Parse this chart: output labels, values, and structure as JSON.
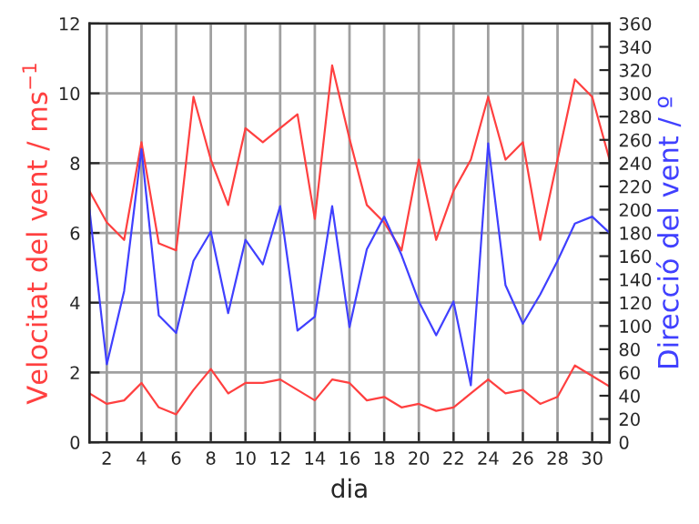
{
  "chart_data": {
    "type": "line",
    "xlabel": "dia",
    "ylabel": "Velocitat del vent / ms$^{−1}$",
    "y2label": "Direcció del vent / º",
    "x": [
      1,
      2,
      3,
      4,
      5,
      6,
      7,
      8,
      9,
      10,
      11,
      12,
      13,
      14,
      15,
      16,
      17,
      18,
      19,
      20,
      21,
      22,
      23,
      24,
      25,
      26,
      27,
      28,
      29,
      30,
      31
    ],
    "series": [
      {
        "color": "#ff4040",
        "values": [
          7.2,
          6.3,
          5.8,
          8.6,
          5.7,
          5.5,
          9.9,
          8.1,
          6.8,
          9.0,
          8.6,
          9.0,
          9.4,
          6.4,
          10.8,
          8.7,
          6.8,
          6.3,
          5.5,
          8.1,
          5.8,
          7.2,
          8.1,
          9.9,
          8.1,
          8.6,
          5.8,
          8.1,
          10.4,
          9.9,
          8.1
        ]
      },
      {
        "color": "#ff4040",
        "values": [
          1.4,
          1.1,
          1.2,
          1.7,
          1.0,
          0.8,
          1.5,
          2.1,
          1.4,
          1.7,
          1.7,
          1.8,
          1.5,
          1.2,
          1.8,
          1.7,
          1.2,
          1.3,
          1.0,
          1.1,
          0.9,
          1.0,
          1.4,
          1.8,
          1.4,
          1.5,
          1.1,
          1.3,
          2.2,
          1.9,
          1.6
        ]
      },
      {
        "color": "#4040ff",
        "axis": "y2",
        "values": [
          200,
          67,
          130,
          252,
          109,
          94,
          156,
          181,
          111,
          174,
          153,
          203,
          96,
          108,
          203,
          99,
          166,
          194,
          161,
          121,
          92,
          121,
          49,
          257,
          135,
          102,
          127,
          156,
          188,
          194,
          180
        ]
      }
    ],
    "xlim": [
      1,
      31
    ],
    "xticks": [
      2,
      4,
      6,
      8,
      10,
      12,
      14,
      16,
      18,
      20,
      22,
      24,
      26,
      28,
      30
    ],
    "ylim": [
      0,
      12
    ],
    "yticks": [
      0,
      2,
      4,
      6,
      8,
      10,
      12
    ],
    "y2lim": [
      0,
      360
    ],
    "y2ticks": [
      0,
      20,
      40,
      60,
      80,
      100,
      120,
      140,
      160,
      180,
      200,
      220,
      240,
      260,
      280,
      300,
      320,
      340,
      360
    ],
    "grid": true,
    "line_style": "solid",
    "marker": "none"
  }
}
